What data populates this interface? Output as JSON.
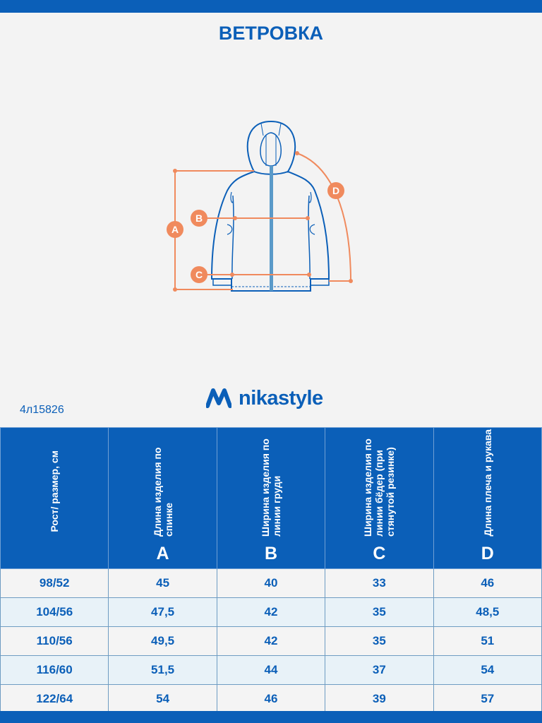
{
  "title": "ВЕТРОВКА",
  "diagram": {
    "labels": [
      "A",
      "B",
      "C",
      "D"
    ],
    "line_color": "#f08a5d",
    "outline_color": "#0b5fb8",
    "zipper_color": "#5a9ac9"
  },
  "brand": {
    "name": "nikastyle",
    "color": "#0b5fb8"
  },
  "article": "4л15826",
  "table": {
    "headers": [
      {
        "text": "Рост/ размер, см",
        "letter": ""
      },
      {
        "text": "Длина изделия по спинке",
        "letter": "A"
      },
      {
        "text": "Ширина изделия по линии груди",
        "letter": "B"
      },
      {
        "text": "Ширина изделия по линии бёдер (при стянутой резинке)",
        "letter": "C"
      },
      {
        "text": "Длина плеча и рукава",
        "letter": "D"
      }
    ],
    "rows": [
      [
        "98/52",
        "45",
        "40",
        "33",
        "46"
      ],
      [
        "104/56",
        "47,5",
        "42",
        "35",
        "48,5"
      ],
      [
        "110/56",
        "49,5",
        "42",
        "35",
        "51"
      ],
      [
        "116/60",
        "51,5",
        "44",
        "37",
        "54"
      ],
      [
        "122/64",
        "54",
        "46",
        "39",
        "57"
      ]
    ]
  }
}
